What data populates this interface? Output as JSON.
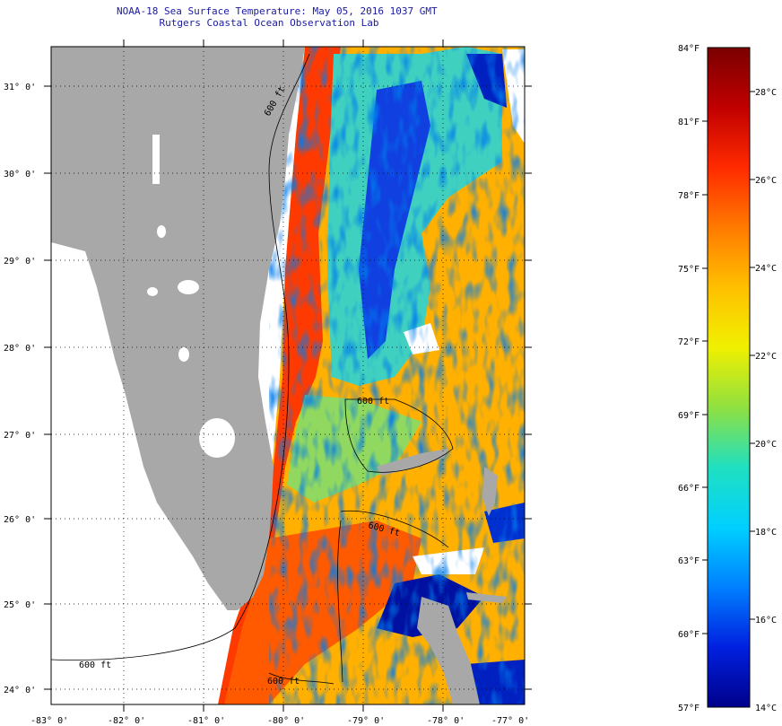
{
  "title": {
    "line1": "NOAA-18 Sea Surface Temperature:  May 05, 2016 1037 GMT",
    "line2": "Rutgers Coastal Ocean Observation Lab"
  },
  "map": {
    "lon_labels": [
      "-83° 0'",
      "-82° 0'",
      "-81° 0'",
      "-80° 0'",
      "-79° 0'",
      "-78° 0'",
      "-77° 0'"
    ],
    "lat_labels": [
      "31° 0'",
      "30° 0'",
      "29° 0'",
      "28° 0'",
      "27° 0'",
      "26° 0'",
      "25° 0'",
      "24° 0'"
    ],
    "contour_labels": [
      "600 ft",
      "600 ft",
      "600 ft",
      "600 ft",
      "600 ft"
    ],
    "land_color": "#a8a8a8",
    "grid": "dotted"
  },
  "colorbar": {
    "fahrenheit": [
      "84°F",
      "81°F",
      "78°F",
      "75°F",
      "72°F",
      "69°F",
      "66°F",
      "63°F",
      "60°F",
      "57°F"
    ],
    "celsius": [
      "28°C",
      "26°C",
      "24°C",
      "22°C",
      "20°C",
      "18°C",
      "16°C",
      "14°C"
    ],
    "colors": [
      "#7a0000",
      "#c00000",
      "#ff2a00",
      "#ff7a00",
      "#ffc000",
      "#f0f000",
      "#90e040",
      "#20e0c0",
      "#00d0ff",
      "#0080ff",
      "#0020e0",
      "#00008a"
    ]
  }
}
